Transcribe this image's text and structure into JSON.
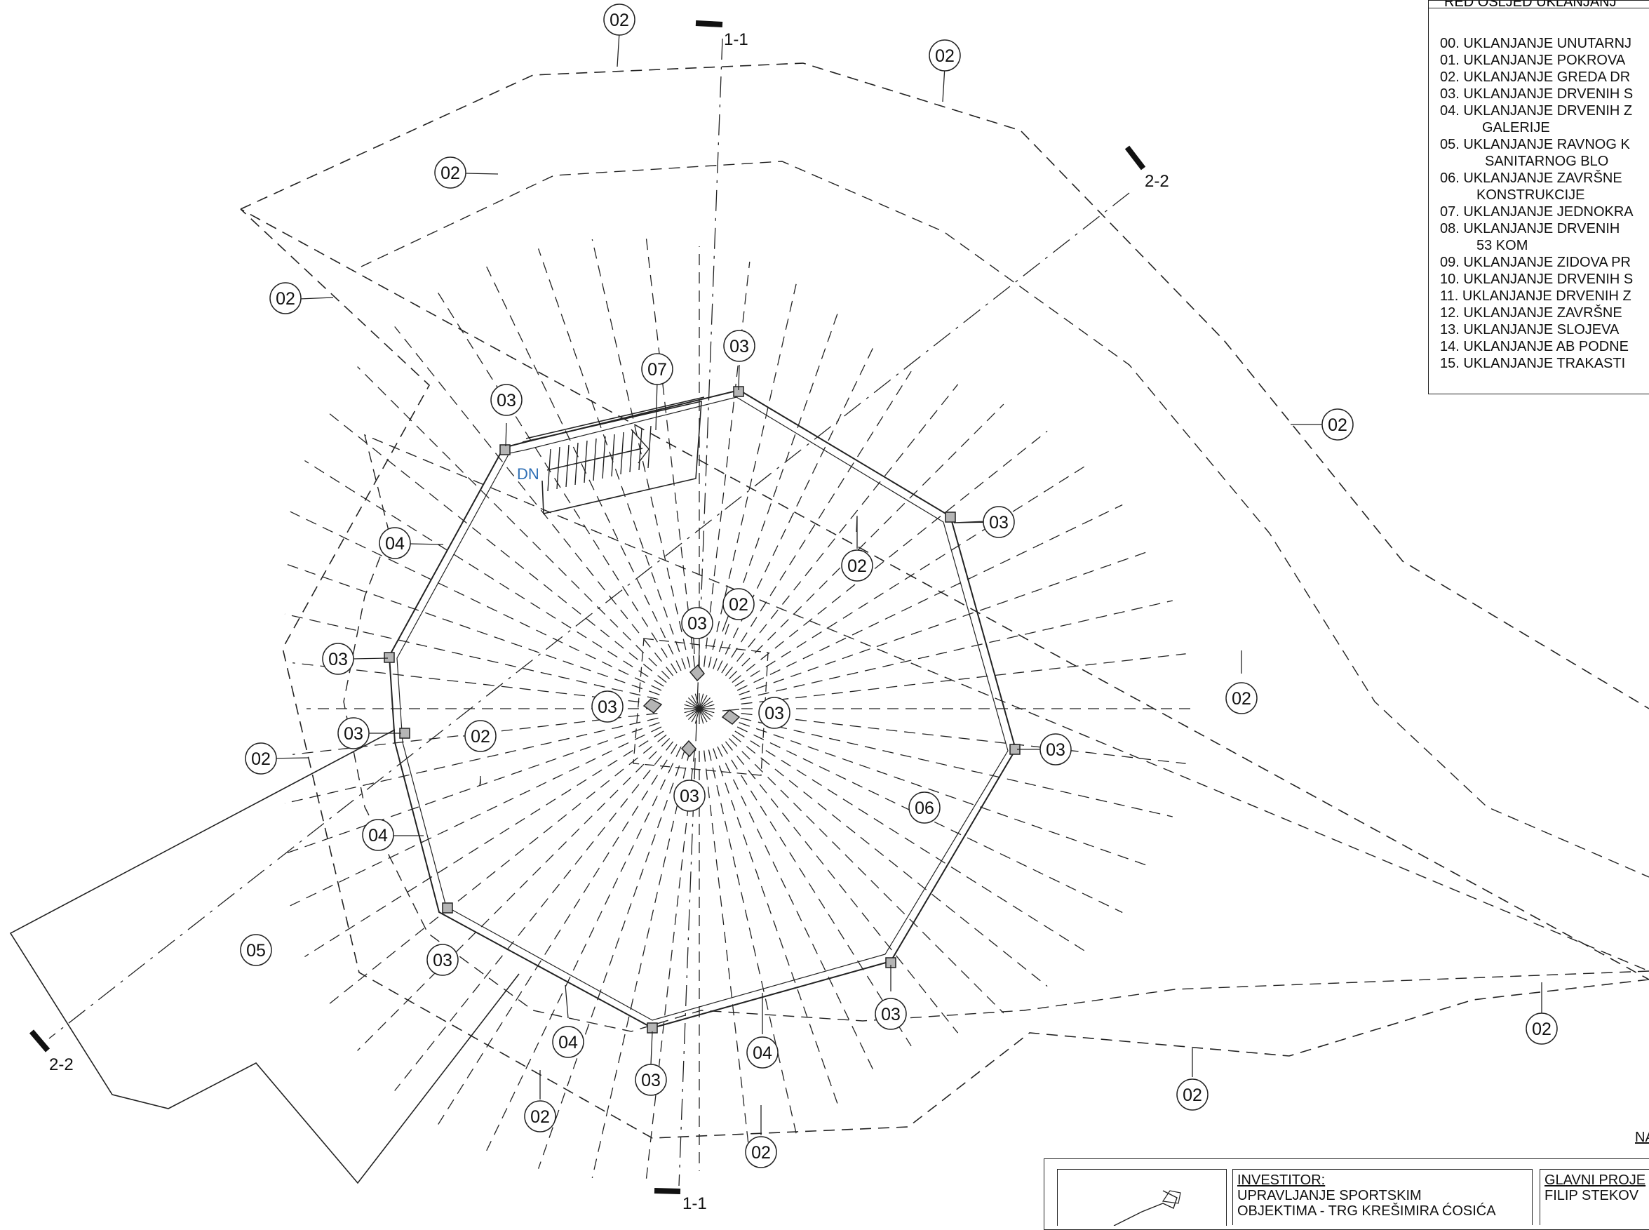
{
  "legend": {
    "heading": "RED OSLJED UKLANJANJ",
    "items": [
      "00. UKLANJANJE UNUTARNJ",
      "01. UKLANJANJE POKROVA",
      "02. UKLANJANJE GREDA DR",
      "03. UKLANJANJE DRVENIH S",
      "04. UKLANJANJE DRVENIH Z",
      "GALERIJE",
      "05. UKLANJANJE RAVNOG K",
      "SANITARNOG BLO",
      "06. UKLANJANJE ZAVRŠNE",
      "KONSTRUKCIJE",
      "07. UKLANJANJE JEDNOKRA",
      "08. UKLANJANJE DRVENIH",
      "53 KOM",
      "09. UKLANJANJE ZIDOVA PR",
      "10. UKLANJANJE DRVENIH S",
      "11. UKLANJANJE DRVENIH Z",
      "12. UKLANJANJE ZAVRŠNE",
      "13. UKLANJANJE SLOJEVA",
      "14. UKLANJANJE AB PODNE",
      "15. UKLANJANJE TRAKASTI"
    ]
  },
  "sections": {
    "s11_top": "1-1",
    "s11_bottom": "1-1",
    "s22_top": "2-2",
    "s22_bottom": "2-2"
  },
  "stair_label": "DN",
  "tags": {
    "c02": "02",
    "c03": "03",
    "c04": "04",
    "c05": "05",
    "c06": "06",
    "c07": "07"
  },
  "drawing_label": "NA",
  "title_block": {
    "investor_heading": "INVESTITOR:",
    "investor_line1": "UPRAVLJANJE SPORTSKIM",
    "investor_line2": "OBJEKTIMA - TRG KREŠIMIRA ĆOSIĆA",
    "designer_heading": "GLAVNI PROJE",
    "designer_name": "FILIP STEKOV"
  },
  "colors": {
    "line": "#222222",
    "dn_text": "#2f6fb5",
    "column_fill": "#b5b5b5"
  }
}
